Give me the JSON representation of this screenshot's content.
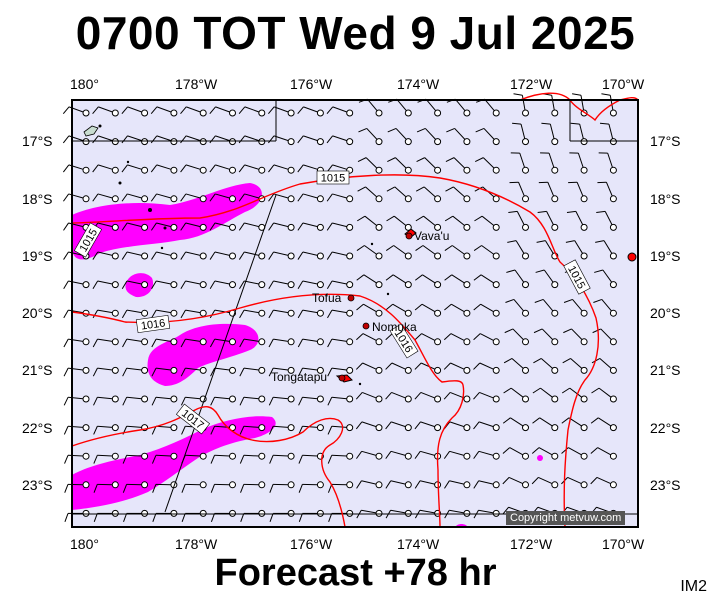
{
  "header": {
    "title": "0700 TOT Wed 9 Jul 2025"
  },
  "footer": {
    "forecast": "Forecast +78 hr",
    "model": "IM2"
  },
  "copyright": "Copyright metvuw.com",
  "axes": {
    "lon_labels": [
      "180°",
      "178°W",
      "176°W",
      "174°W",
      "172°W",
      "170°W"
    ],
    "lat_labels": [
      "17°S",
      "18°S",
      "19°S",
      "20°S",
      "21°S",
      "22°S",
      "23°S"
    ]
  },
  "places": [
    {
      "name": "Vava'u"
    },
    {
      "name": "Tofua"
    },
    {
      "name": "Nomuka"
    },
    {
      "name": "Tongatapu"
    }
  ],
  "isobars": [
    {
      "label": "1015"
    },
    {
      "label": "1015"
    },
    {
      "label": "1015"
    },
    {
      "label": "1016"
    },
    {
      "label": "1016"
    },
    {
      "label": "1017"
    }
  ],
  "colors": {
    "background": "#e6e6fa",
    "isobar": "#ff0000",
    "precip": "#ff00ff",
    "land": "#000000"
  }
}
